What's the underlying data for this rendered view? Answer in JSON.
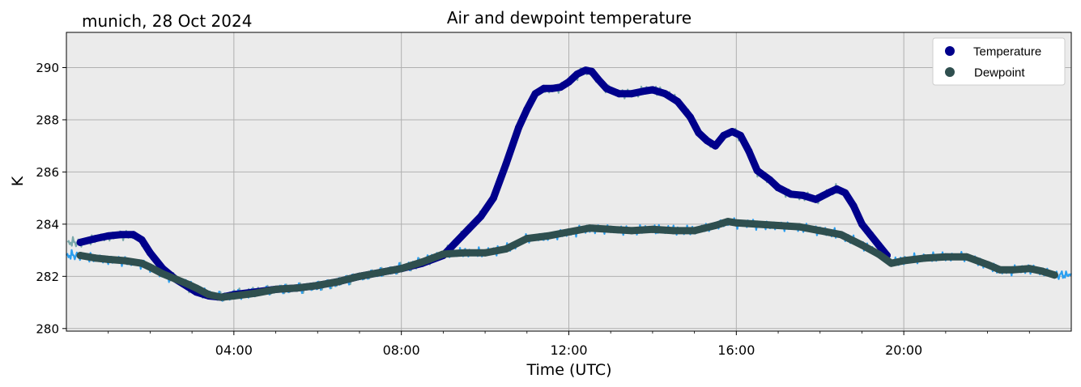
{
  "chart_data": {
    "type": "line",
    "title": "Air and dewpoint temperature",
    "subtitle": "munich, 28 Oct 2024",
    "xlabel": "Time (UTC)",
    "ylabel": "K",
    "xlim": [
      0,
      24
    ],
    "ylim": [
      279.9,
      291.35
    ],
    "grid": true,
    "legend_position": "top-right",
    "x_ticks": [
      {
        "value": 4,
        "label": "04:00"
      },
      {
        "value": 8,
        "label": "08:00"
      },
      {
        "value": 12,
        "label": "12:00"
      },
      {
        "value": 16,
        "label": "16:00"
      },
      {
        "value": 20,
        "label": "20:00"
      }
    ],
    "y_ticks": [
      {
        "value": 280,
        "label": "280"
      },
      {
        "value": 282,
        "label": "282"
      },
      {
        "value": 284,
        "label": "284"
      },
      {
        "value": 286,
        "label": "286"
      },
      {
        "value": 288,
        "label": "288"
      },
      {
        "value": 290,
        "label": "290"
      }
    ],
    "series": [
      {
        "name": "Temperature",
        "color": "#00008b",
        "raw_color": "#7aa9ab",
        "x": [
          0.33,
          0.7,
          1.0,
          1.3,
          1.6,
          1.8,
          2.0,
          2.3,
          2.6,
          2.9,
          3.1,
          3.4,
          3.7,
          4.0,
          4.5,
          5.0,
          5.5,
          6.0,
          6.5,
          7.0,
          7.5,
          8.0,
          8.5,
          9.0,
          9.3,
          9.6,
          9.9,
          10.2,
          10.5,
          10.8,
          11.0,
          11.2,
          11.4,
          11.6,
          11.8,
          12.0,
          12.2,
          12.4,
          12.55,
          12.7,
          12.9,
          13.2,
          13.5,
          13.8,
          14.0,
          14.3,
          14.6,
          14.9,
          15.1,
          15.3,
          15.5,
          15.7,
          15.9,
          16.1,
          16.3,
          16.5,
          16.8,
          17.0,
          17.3,
          17.6,
          17.9,
          18.2,
          18.4,
          18.6,
          18.8,
          19.0,
          19.2,
          19.4,
          19.6
        ],
        "values": [
          283.3,
          283.45,
          283.55,
          283.6,
          283.6,
          283.4,
          282.9,
          282.3,
          281.9,
          281.6,
          281.4,
          281.25,
          281.2,
          281.3,
          281.4,
          281.5,
          281.55,
          281.65,
          281.8,
          282.0,
          282.15,
          282.3,
          282.5,
          282.8,
          283.3,
          283.8,
          284.3,
          285.0,
          286.3,
          287.7,
          288.4,
          289.0,
          289.2,
          289.2,
          289.25,
          289.45,
          289.75,
          289.9,
          289.85,
          289.55,
          289.2,
          289.0,
          289.0,
          289.1,
          289.15,
          289.0,
          288.7,
          288.1,
          287.5,
          287.2,
          287.0,
          287.4,
          287.55,
          287.4,
          286.8,
          286.05,
          285.7,
          285.4,
          285.15,
          285.1,
          284.95,
          285.2,
          285.35,
          285.2,
          284.7,
          284.0,
          283.6,
          283.2,
          282.8
        ]
      },
      {
        "name": "Dewpoint",
        "color": "#2f4f4f",
        "raw_color": "#2b9ff0",
        "x": [
          0.33,
          0.7,
          1.0,
          1.4,
          1.8,
          2.0,
          2.3,
          2.6,
          2.9,
          3.1,
          3.4,
          3.7,
          4.0,
          4.5,
          5.0,
          5.5,
          6.0,
          6.5,
          7.0,
          7.5,
          8.0,
          8.5,
          9.0,
          9.5,
          10.0,
          10.5,
          11.0,
          11.5,
          12.0,
          12.5,
          13.0,
          13.5,
          14.0,
          14.5,
          15.0,
          15.5,
          15.8,
          16.0,
          16.5,
          17.0,
          17.5,
          18.0,
          18.5,
          19.0,
          19.4,
          19.7,
          20.0,
          20.5,
          21.0,
          21.5,
          22.0,
          22.3,
          22.6,
          23.0,
          23.3,
          23.6
        ],
        "values": [
          282.8,
          282.7,
          282.65,
          282.6,
          282.5,
          282.35,
          282.1,
          281.9,
          281.7,
          281.55,
          281.3,
          281.2,
          281.25,
          281.35,
          281.5,
          281.55,
          281.65,
          281.8,
          282.0,
          282.15,
          282.3,
          282.55,
          282.85,
          282.9,
          282.9,
          283.05,
          283.45,
          283.55,
          283.7,
          283.85,
          283.8,
          283.75,
          283.8,
          283.75,
          283.75,
          283.95,
          284.1,
          284.05,
          284.0,
          283.95,
          283.9,
          283.75,
          283.6,
          283.2,
          282.85,
          282.5,
          282.6,
          282.7,
          282.75,
          282.75,
          282.45,
          282.25,
          282.25,
          282.3,
          282.2,
          282.05
        ]
      }
    ]
  }
}
